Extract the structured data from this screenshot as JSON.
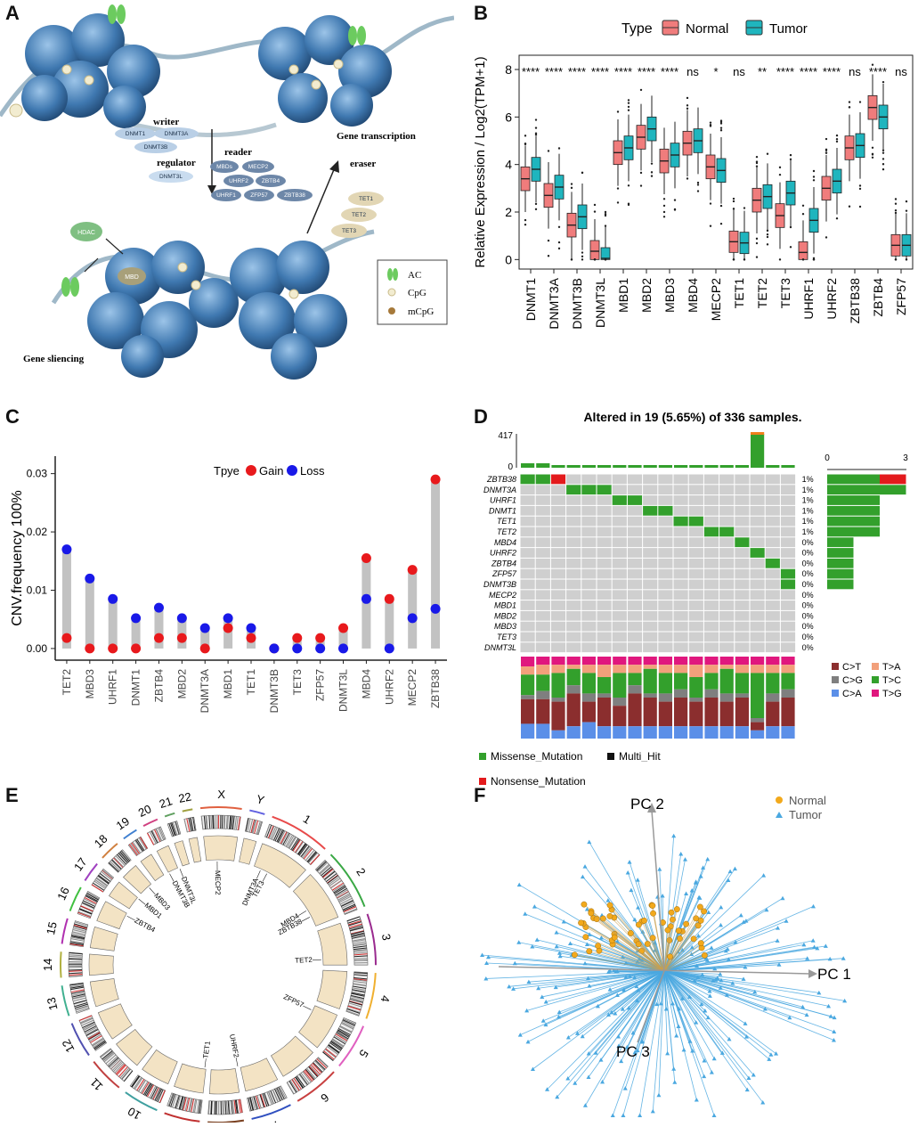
{
  "panels": {
    "a": {
      "label": "A",
      "writer": "writer",
      "reader": "reader",
      "regulator": "regulator",
      "eraser": "eraser",
      "gene_transcription": "Gene transcription",
      "gene_silencing": "Gene sliencing",
      "writer_genes": [
        "DNMT1",
        "DNMT3A",
        "DNMT3B"
      ],
      "regulator_genes": [
        "DNMT3L"
      ],
      "reader_genes": [
        "MBDs",
        "MECP2",
        "UHRF2",
        "ZBTB4",
        "UHRF1",
        "ZFP57",
        "ZBTB38"
      ],
      "eraser_genes": [
        "TET1",
        "TET2",
        "TET3"
      ],
      "hdac": "HDAC",
      "mbd": "MBD",
      "legend": [
        "AC",
        "CpG",
        "mCpG"
      ]
    },
    "b": {
      "label": "B",
      "legend_title": "Type",
      "legend": [
        "Normal",
        "Tumor"
      ],
      "colors": {
        "normal": "#F07C7C",
        "tumor": "#1FB5BE"
      }
    },
    "c": {
      "label": "C",
      "legend_title": "Tpye",
      "legend": [
        "Gain",
        "Loss"
      ],
      "colors": {
        "gain": "#E8191C",
        "loss": "#1919E8"
      }
    },
    "d": {
      "label": "D",
      "title": "Altered in 19 (5.65%) of 336 samples.",
      "tmb_max": "417",
      "tmb_min": "0",
      "bar_axis": [
        "0",
        "3"
      ],
      "genes": [
        "ZBTB38",
        "DNMT3A",
        "UHRF1",
        "DNMT1",
        "TET1",
        "TET2",
        "MBD4",
        "UHRF2",
        "ZBTB4",
        "ZFP57",
        "DNMT3B",
        "MECP2",
        "MBD1",
        "MBD2",
        "MBD3",
        "TET3",
        "DNMT3L"
      ],
      "percents": [
        "1%",
        "1%",
        "1%",
        "1%",
        "1%",
        "1%",
        "0%",
        "0%",
        "0%",
        "0%",
        "0%",
        "0%",
        "0%",
        "0%",
        "0%",
        "0%",
        "0%"
      ],
      "gene_counts": [
        3,
        3,
        2,
        2,
        2,
        2,
        1,
        1,
        1,
        1,
        1,
        0,
        0,
        0,
        0,
        0,
        0
      ],
      "titv_legend": [
        "C>T",
        "T>A",
        "C>G",
        "T>C",
        "C>A",
        "T>G"
      ],
      "titv_colors": {
        "C>T": "#8B2E2E",
        "T>A": "#F2A07B",
        "C>G": "#7F7F7F",
        "T>C": "#33A02C",
        "C>A": "#5B8FE8",
        "T>G": "#E0177E"
      },
      "mut_legend": [
        "Missense_Mutation",
        "Multi_Hit",
        "Nonsense_Mutation"
      ],
      "mut_colors": {
        "missense": "#33A02C",
        "multihit": "#111111",
        "nonsense": "#E31A1C"
      }
    },
    "e": {
      "label": "E",
      "chromosomes": [
        "1",
        "2",
        "3",
        "4",
        "5",
        "6",
        "7",
        "8",
        "9",
        "10",
        "11",
        "12",
        "13",
        "14",
        "15",
        "16",
        "17",
        "18",
        "19",
        "20",
        "21",
        "22",
        "X",
        "Y"
      ],
      "gene_labels": [
        "MECP2",
        "DNMT3L",
        "DNMT3B",
        "MBD3",
        "MBD1",
        "ZBTB4",
        "DNMT3A",
        "TET3",
        "MBD4",
        "ZBTB38",
        "TET2",
        "ZFP57",
        "UHRF2",
        "TET1"
      ]
    },
    "f": {
      "label": "F",
      "axes": [
        "PC 1",
        "PC 2",
        "PC 3"
      ],
      "legend": [
        "Normal",
        "Tumor"
      ],
      "colors": {
        "normal": "#F2A91C",
        "tumor": "#4AA8E0"
      }
    }
  },
  "chart_data": [
    {
      "id": "B",
      "type": "box",
      "categories": [
        "DNMT1",
        "DNMT3A",
        "DNMT3B",
        "DNMT3L",
        "MBD1",
        "MBD2",
        "MBD3",
        "MBD4",
        "MECP2",
        "TET1",
        "TET2",
        "TET3",
        "UHRF1",
        "UHRF2",
        "ZBTB38",
        "ZBTB4",
        "ZFP57"
      ],
      "series": [
        {
          "name": "Normal",
          "medians": [
            3.4,
            2.7,
            1.45,
            0.35,
            4.5,
            5.15,
            4.15,
            4.9,
            3.9,
            0.75,
            2.5,
            1.85,
            0.3,
            3.0,
            4.7,
            6.4,
            0.6
          ]
        },
        {
          "name": "Tumor",
          "medians": [
            3.8,
            3.05,
            1.8,
            0.05,
            4.7,
            5.5,
            4.4,
            5.0,
            3.75,
            0.7,
            2.65,
            2.8,
            1.65,
            3.3,
            4.8,
            6.0,
            0.6
          ]
        }
      ],
      "significance": [
        "****",
        "****",
        "****",
        "****",
        "****",
        "****",
        "****",
        "ns",
        "*",
        "ns",
        "**",
        "****",
        "****",
        "****",
        "ns",
        "****",
        "ns"
      ],
      "ylabel": "Relative Expression / Log2(TPM+1)",
      "yticks": [
        "0",
        "2",
        "4",
        "6",
        "8"
      ],
      "ylim": [
        -0.4,
        8.6
      ]
    },
    {
      "id": "C",
      "type": "lollipop",
      "categories": [
        "TET2",
        "MBD3",
        "UHRF1",
        "DNMT1",
        "ZBTB4",
        "MBD2",
        "DNMT3A",
        "MBD1",
        "TET1",
        "DNMT3B",
        "TET3",
        "ZFP57",
        "DNMT3L",
        "MBD4",
        "UHRF2",
        "MECP2",
        "ZBTB38"
      ],
      "gain": [
        0.0018,
        0.0,
        0.0,
        0.0,
        0.0018,
        0.0018,
        0.0,
        0.0035,
        0.0018,
        0.0,
        0.0018,
        0.0018,
        0.0035,
        0.0155,
        0.0085,
        0.0135,
        0.029
      ],
      "loss": [
        0.017,
        0.012,
        0.0085,
        0.0052,
        0.007,
        0.0052,
        0.0035,
        0.0052,
        0.0035,
        0.0,
        0.0,
        0.0,
        0.0,
        0.0085,
        0.0,
        0.0052,
        0.0068
      ],
      "ylabel": "CNV.frequency 100%",
      "yticks": [
        "0.00",
        "0.01",
        "0.02",
        "0.03"
      ],
      "ylim": [
        -0.002,
        0.033
      ]
    }
  ]
}
